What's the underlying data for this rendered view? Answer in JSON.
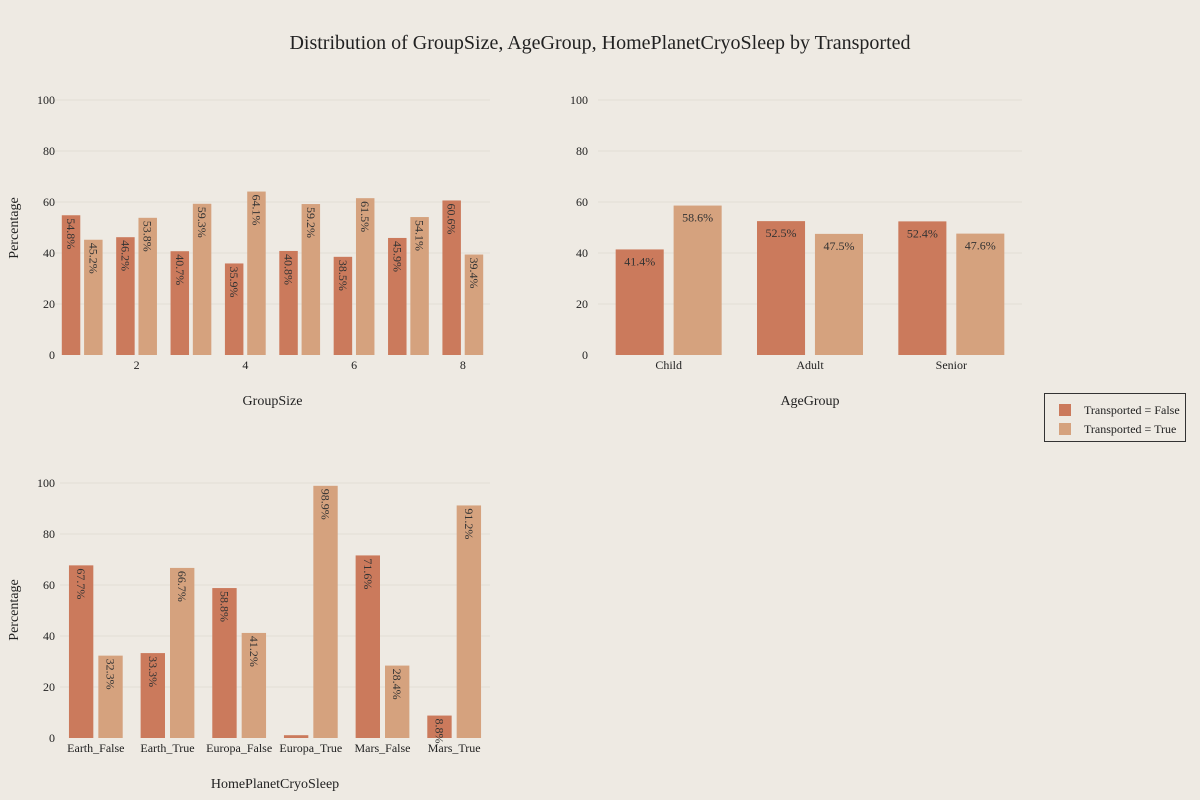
{
  "title": "Distribution of GroupSize, AgeGroup, HomePlanetCryoSleep by Transported",
  "colors": {
    "false": "#CB7A5C",
    "true": "#D5A27E"
  },
  "legend": [
    {
      "label": "Transported = False",
      "color": "#CB7A5C"
    },
    {
      "label": "Transported = True",
      "color": "#D5A27E"
    }
  ],
  "chart_data": [
    {
      "type": "bar",
      "xlabel": "GroupSize",
      "ylabel": "Percentage",
      "ylim": [
        0,
        100
      ],
      "yticks": [
        0,
        20,
        40,
        60,
        80,
        100
      ],
      "x": [
        1,
        2,
        3,
        4,
        5,
        6,
        7,
        8
      ],
      "xticks": [
        2,
        4,
        6,
        8
      ],
      "series": [
        {
          "name": "Transported = False",
          "values": [
            54.8,
            46.2,
            40.7,
            35.9,
            40.8,
            38.5,
            45.9,
            60.6
          ],
          "labels": [
            "54.8%",
            "46.2%",
            "40.7%",
            "35.9%",
            "40.8%",
            "38.5%",
            "45.9%",
            "60.6%"
          ]
        },
        {
          "name": "Transported = True",
          "values": [
            45.2,
            53.8,
            59.3,
            64.1,
            59.2,
            61.5,
            54.1,
            39.4
          ],
          "labels": [
            "45.2%",
            "53.8%",
            "59.3%",
            "64.1%",
            "59.2%",
            "61.5%",
            "54.1%",
            "39.4%"
          ]
        }
      ]
    },
    {
      "type": "bar",
      "xlabel": "AgeGroup",
      "ylabel": "",
      "ylim": [
        0,
        100
      ],
      "yticks": [
        0,
        20,
        40,
        60,
        80,
        100
      ],
      "categories": [
        "Child",
        "Adult",
        "Senior"
      ],
      "series": [
        {
          "name": "Transported = False",
          "values": [
            41.4,
            52.5,
            52.4
          ],
          "labels": [
            "41.4%",
            "52.5%",
            "52.4%"
          ]
        },
        {
          "name": "Transported = True",
          "values": [
            58.6,
            47.5,
            47.6
          ],
          "labels": [
            "58.6%",
            "47.5%",
            "47.6%"
          ]
        }
      ]
    },
    {
      "type": "bar",
      "xlabel": "HomePlanetCryoSleep",
      "ylabel": "Percentage",
      "ylim": [
        0,
        100
      ],
      "yticks": [
        0,
        20,
        40,
        60,
        80,
        100
      ],
      "categories": [
        "Earth_False",
        "Earth_True",
        "Europa_False",
        "Europa_True",
        "Mars_False",
        "Mars_True"
      ],
      "series": [
        {
          "name": "Transported = False",
          "values": [
            67.7,
            33.3,
            58.8,
            1.1,
            71.6,
            8.8
          ],
          "labels": [
            "67.7%",
            "33.3%",
            "58.8%",
            "",
            "71.6%",
            "8.8%"
          ]
        },
        {
          "name": "Transported = True",
          "values": [
            32.3,
            66.7,
            41.2,
            98.9,
            28.4,
            91.2
          ],
          "labels": [
            "32.3%",
            "66.7%",
            "41.2%",
            "98.9%",
            "28.4%",
            "91.2%"
          ]
        }
      ]
    }
  ]
}
